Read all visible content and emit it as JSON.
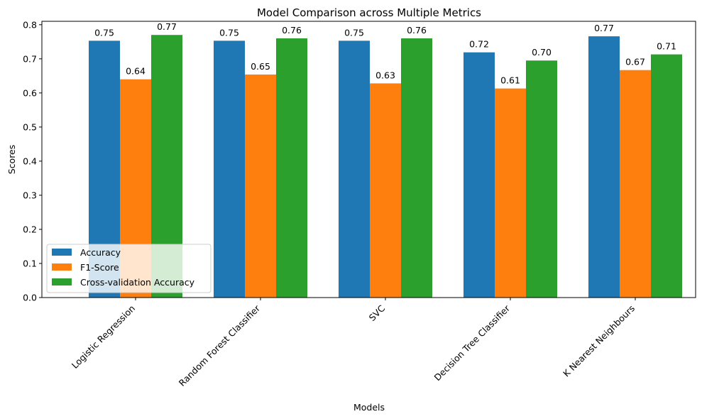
{
  "chart_data": {
    "type": "bar",
    "title": "Model Comparison across Multiple Metrics",
    "xlabel": "Models",
    "ylabel": "Scores",
    "categories": [
      "Logistic Regression",
      "Random Forest Classifier",
      "SVC",
      "Decision Tree Classifier",
      "K Nearest Neighbours"
    ],
    "series": [
      {
        "name": "Accuracy",
        "color": "#1f77b4",
        "values": [
          0.753,
          0.753,
          0.753,
          0.719,
          0.766
        ],
        "labels": [
          "0.75",
          "0.75",
          "0.75",
          "0.72",
          "0.77"
        ]
      },
      {
        "name": "F1-Score",
        "color": "#ff7f0e",
        "values": [
          0.64,
          0.654,
          0.628,
          0.613,
          0.667
        ],
        "labels": [
          "0.64",
          "0.65",
          "0.63",
          "0.61",
          "0.67"
        ]
      },
      {
        "name": "Cross-validation Accuracy",
        "color": "#2ca02c",
        "values": [
          0.77,
          0.76,
          0.76,
          0.695,
          0.713
        ],
        "labels": [
          "0.77",
          "0.76",
          "0.76",
          "0.70",
          "0.71"
        ]
      }
    ],
    "ylim": [
      0,
      0.81
    ],
    "yticks": [
      "0.0",
      "0.1",
      "0.2",
      "0.3",
      "0.4",
      "0.5",
      "0.6",
      "0.7",
      "0.8"
    ],
    "grid": false,
    "legend_position": "lower-left"
  }
}
